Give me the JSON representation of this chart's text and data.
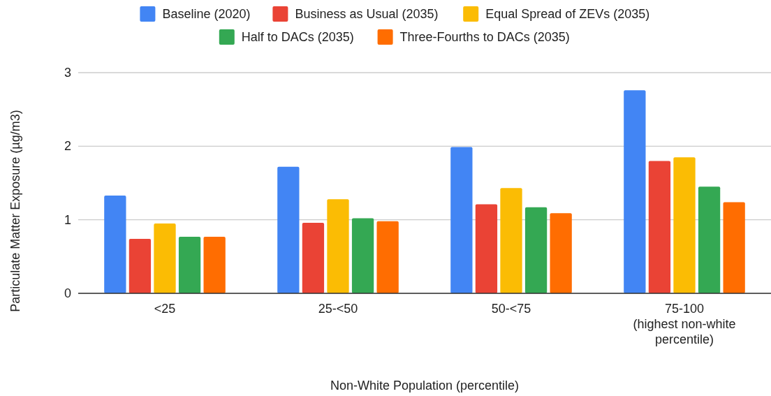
{
  "chart_data": {
    "type": "bar",
    "xlabel": "Non-White Population (percentile)",
    "ylabel": "Particulate Matter Exposure (µg/m3)",
    "categories": [
      "<25",
      "25-<50",
      "50-<75",
      "75-100\n(highest non-white\npercentile)"
    ],
    "series": [
      {
        "name": "Baseline (2020)",
        "color": "#4285f4",
        "values": [
          1.33,
          1.72,
          1.99,
          2.76
        ]
      },
      {
        "name": "Business as Usual (2035)",
        "color": "#ea4335",
        "values": [
          0.74,
          0.96,
          1.21,
          1.8
        ]
      },
      {
        "name": "Equal Spread of ZEVs (2035)",
        "color": "#fbbc04",
        "values": [
          0.95,
          1.28,
          1.43,
          1.85
        ]
      },
      {
        "name": "Half to DACs (2035)",
        "color": "#34a853",
        "values": [
          0.77,
          1.02,
          1.17,
          1.45
        ]
      },
      {
        "name": "Three-Fourths to DACs (2035)",
        "color": "#ff6d01",
        "values": [
          0.77,
          0.98,
          1.09,
          1.24
        ]
      }
    ],
    "ylim": [
      0,
      3
    ],
    "yticks": [
      0,
      1,
      2,
      3
    ],
    "grid": "y",
    "legend": "top"
  }
}
